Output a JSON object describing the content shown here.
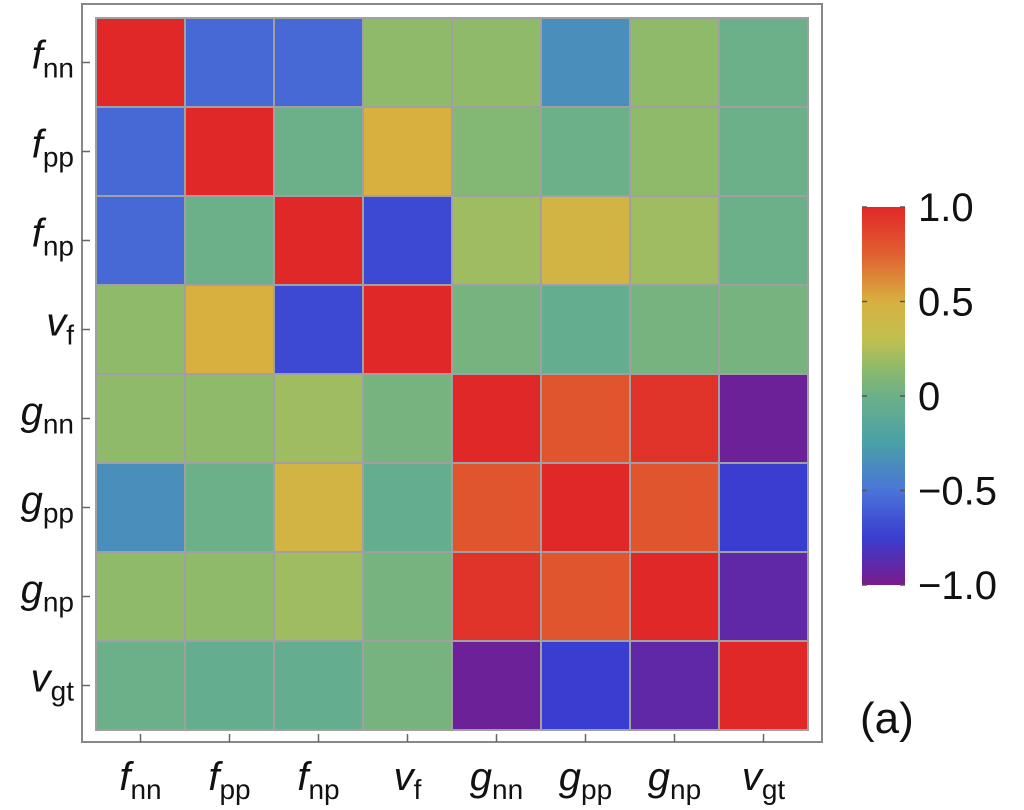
{
  "chart_data": {
    "type": "heatmap",
    "title": "",
    "panel_label": "(a)",
    "labels": [
      {
        "base": "f",
        "sub": "nn"
      },
      {
        "base": "f",
        "sub": "pp"
      },
      {
        "base": "f",
        "sub": "np"
      },
      {
        "base": "v",
        "sub": "f"
      },
      {
        "base": "g",
        "sub": "nn"
      },
      {
        "base": "g",
        "sub": "pp"
      },
      {
        "base": "g",
        "sub": "np"
      },
      {
        "base": "v",
        "sub": "gt"
      }
    ],
    "matrix": [
      [
        1.0,
        -0.55,
        -0.55,
        0.15,
        0.15,
        -0.35,
        0.15,
        0.0
      ],
      [
        -0.55,
        1.0,
        0.0,
        0.5,
        0.1,
        0.0,
        0.15,
        0.0
      ],
      [
        -0.55,
        0.0,
        1.0,
        -0.7,
        0.2,
        0.45,
        0.2,
        0.0
      ],
      [
        0.15,
        0.5,
        -0.7,
        1.0,
        0.05,
        -0.05,
        0.05,
        0.05
      ],
      [
        0.15,
        0.15,
        0.2,
        0.05,
        1.0,
        0.8,
        0.95,
        -0.95
      ],
      [
        -0.35,
        0.0,
        0.45,
        -0.05,
        0.8,
        1.0,
        0.8,
        -0.75
      ],
      [
        0.15,
        0.15,
        0.2,
        0.05,
        0.95,
        0.8,
        1.0,
        -0.9
      ],
      [
        0.0,
        -0.05,
        -0.05,
        0.05,
        -0.95,
        -0.75,
        -0.9,
        1.0
      ]
    ],
    "colorbar": {
      "range": [
        -1.0,
        1.0
      ],
      "ticks": [
        1.0,
        0.5,
        0,
        -0.5,
        -1.0
      ],
      "tick_labels": [
        "1.0",
        "0.5",
        "0",
        "−0.5",
        "−1.0"
      ],
      "colors": [
        {
          "v": -1.0,
          "c": "#7a1a8a"
        },
        {
          "v": -0.75,
          "c": "#3a3ed0"
        },
        {
          "v": -0.5,
          "c": "#4a74d8"
        },
        {
          "v": -0.25,
          "c": "#4aa0a8"
        },
        {
          "v": 0.0,
          "c": "#6bb088"
        },
        {
          "v": 0.15,
          "c": "#8fba6a"
        },
        {
          "v": 0.3,
          "c": "#c0c050"
        },
        {
          "v": 0.5,
          "c": "#d8b040"
        },
        {
          "v": 0.75,
          "c": "#e06030"
        },
        {
          "v": 1.0,
          "c": "#e02828"
        }
      ]
    },
    "grid_line_color": "#a0a0a0",
    "frame_color": "#888888"
  }
}
